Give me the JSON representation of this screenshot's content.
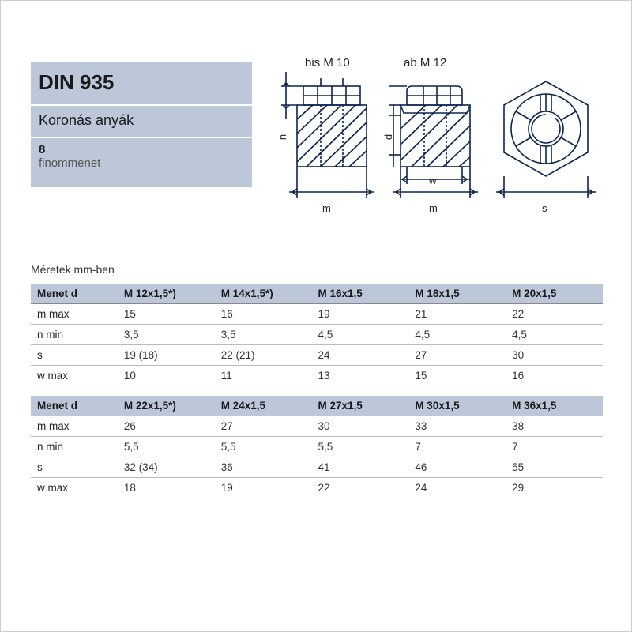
{
  "header": {
    "title": "DIN 935",
    "subtitle": "Koronás anyák",
    "grade": "8",
    "thread_note": "finommenet"
  },
  "diagram": {
    "label_left": "bis M 10",
    "label_mid": "ab M 12",
    "dim_m": "m",
    "dim_w": "w",
    "dim_s": "s",
    "dim_d": "d",
    "dim_n": "n"
  },
  "tables": {
    "caption": "Méretek mm-ben",
    "header_label": "Menet d",
    "row_labels": [
      "m max",
      "n min",
      "s",
      "w max"
    ],
    "block1": {
      "columns": [
        "M 12x1,5*)",
        "M 14x1,5*)",
        "M 16x1,5",
        "M 18x1,5",
        "M 20x1,5"
      ],
      "rows": [
        [
          "15",
          "16",
          "19",
          "21",
          "22"
        ],
        [
          "3,5",
          "3,5",
          "4,5",
          "4,5",
          "4,5"
        ],
        [
          "19 (18)",
          "22 (21)",
          "24",
          "27",
          "30"
        ],
        [
          "10",
          "11",
          "13",
          "15",
          "16"
        ]
      ]
    },
    "block2": {
      "columns": [
        "M 22x1,5*)",
        "M 24x1,5",
        "M 27x1,5",
        "M 30x1,5",
        "M 36x1,5"
      ],
      "rows": [
        [
          "26",
          "27",
          "30",
          "33",
          "38"
        ],
        [
          "5,5",
          "5,5",
          "5,5",
          "7",
          "7"
        ],
        [
          "32 (34)",
          "36",
          "41",
          "46",
          "55"
        ],
        [
          "18",
          "19",
          "22",
          "24",
          "29"
        ]
      ]
    }
  }
}
